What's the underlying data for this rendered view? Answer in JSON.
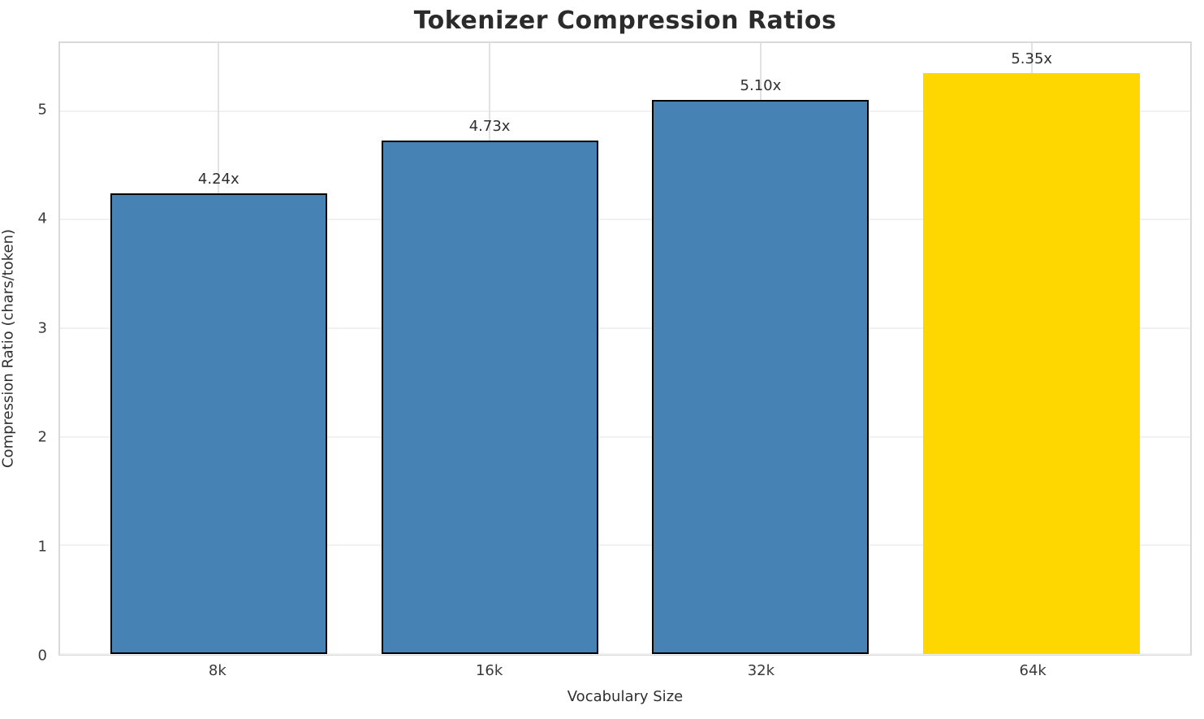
{
  "chart_data": {
    "type": "bar",
    "title": "Tokenizer Compression Ratios",
    "xlabel": "Vocabulary Size",
    "ylabel": "Compression Ratio (chars/token)",
    "categories": [
      "8k",
      "16k",
      "32k",
      "64k"
    ],
    "values": [
      4.24,
      4.73,
      5.1,
      5.35
    ],
    "bar_labels": [
      "4.24x",
      "4.73x",
      "5.10x",
      "5.35x"
    ],
    "bar_colors": [
      "#4682B4",
      "#4682B4",
      "#4682B4",
      "#FFD700"
    ],
    "bar_edge_colors": [
      "#000000",
      "#000000",
      "#000000",
      "#FFD700"
    ],
    "yticks": [
      0,
      1,
      2,
      3,
      4,
      5
    ],
    "ylim": [
      0,
      5.625
    ],
    "grid": true,
    "legend_position": "none",
    "highlight_category": "64k",
    "colors": {
      "bar_default": "#4682B4",
      "bar_highlight": "#FFD700",
      "bar_edge": "#000000",
      "grid_horizontal": "#f1f1f1",
      "grid_vertical": "#e2e2e2",
      "spine": "#d9d9d9",
      "text": "#2b2b2b"
    }
  }
}
